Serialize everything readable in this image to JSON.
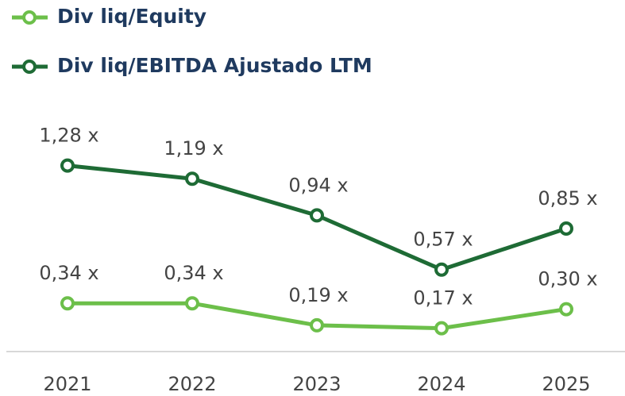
{
  "chart_data": {
    "type": "line",
    "categories": [
      "2021",
      "2022",
      "2023",
      "2024",
      "2025"
    ],
    "series": [
      {
        "name": "Div liq/Equity",
        "color": "#6cbf4a",
        "values": [
          0.34,
          0.34,
          0.19,
          0.17,
          0.3
        ],
        "value_labels": [
          "0,34 x",
          "0,34 x",
          "0,19 x",
          "0,17 x",
          "0,30 x"
        ]
      },
      {
        "name": "Div liq/EBITDA Ajustado LTM",
        "color": "#1e6b35",
        "values": [
          1.28,
          1.19,
          0.94,
          0.57,
          0.85
        ],
        "value_labels": [
          "1,28 x",
          "1,19 x",
          "0,94 x",
          "0,57 x",
          "0,85 x"
        ]
      }
    ]
  }
}
